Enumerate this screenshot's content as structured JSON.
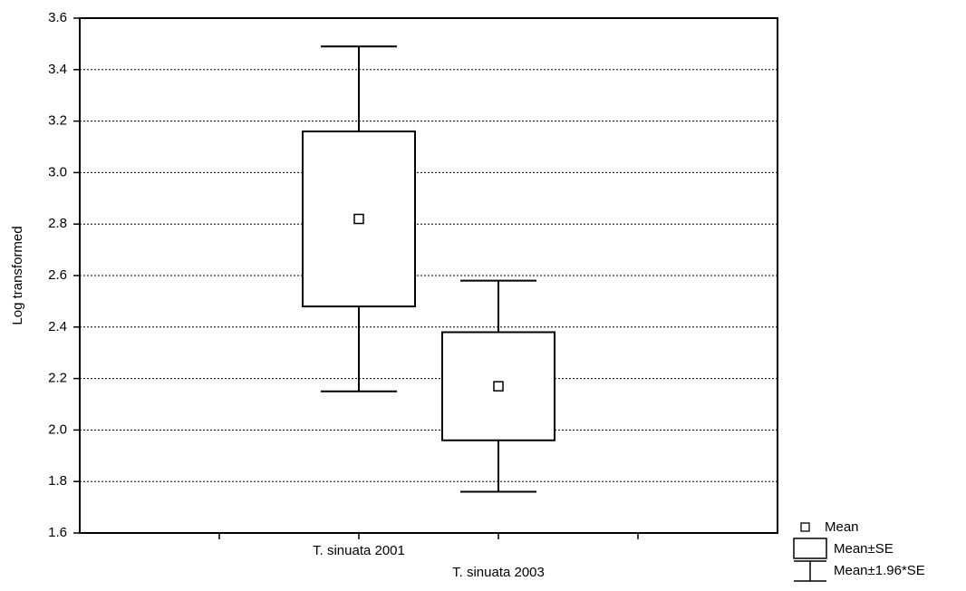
{
  "chart_data": {
    "type": "box",
    "y_label": "Log transformed",
    "categories": [
      "T. sinuata 2001",
      "T. sinuata 2003"
    ],
    "mean": [
      2.82,
      2.17
    ],
    "se": [
      0.34,
      0.21
    ],
    "ci": [
      0.67,
      0.41
    ],
    "legend": [
      "Mean",
      "Mean±SE",
      "Mean±1.96*SE"
    ],
    "ylim": [
      1.6,
      3.6
    ],
    "yticks": [
      1.6,
      1.8,
      {
        "value": 2.0,
        "label": "2.0"
      },
      2.2,
      2.4,
      2.6,
      2.8,
      {
        "value": 3.0,
        "label": "3.0"
      },
      3.2,
      3.4,
      3.6
    ],
    "grid": true
  }
}
